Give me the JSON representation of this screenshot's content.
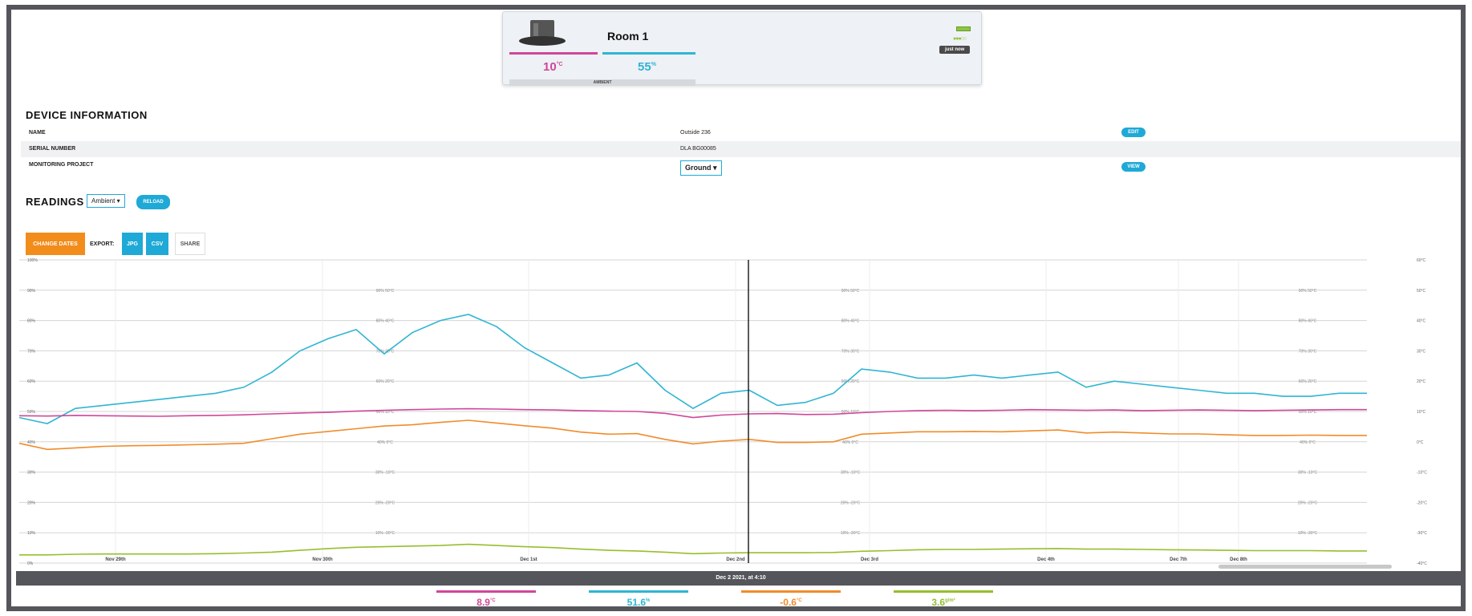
{
  "card": {
    "room_name": "Room 1",
    "temp_value": "10",
    "temp_unit": "°C",
    "humidity_value": "55",
    "humidity_unit": "%",
    "mode": "AMBIENT",
    "signal_dots": "●●●○○",
    "updated": "just now"
  },
  "device_info": {
    "title": "DEVICE INFORMATION",
    "rows": [
      {
        "label": "NAME",
        "value": "Outside 236",
        "action": "EDIT"
      },
      {
        "label": "SERIAL NUMBER",
        "value": "DLA BG00085",
        "action": ""
      },
      {
        "label": "MONITORING PROJECT",
        "value": "Ground",
        "action": "VIEW"
      }
    ]
  },
  "readings": {
    "title": "READINGS",
    "mode_select": "Ambient",
    "reload": "RELOAD",
    "change_dates": "CHANGE DATES",
    "export_label": "EXPORT:",
    "jpg": "JPG",
    "csv": "CSV",
    "share": "SHARE"
  },
  "colors": {
    "temperature": "#d0479a",
    "humidity": "#2fb5d3",
    "dewpoint": "#f08c2a",
    "absolute": "#96bf2e",
    "accent": "#1fa9d6",
    "orange": "#f28c1a"
  },
  "chart_data": {
    "type": "line",
    "x_ticks": [
      "Nov 29th",
      "Nov 30th",
      "Dec 1st",
      "Dec 2nd",
      "Dec 3rd",
      "Dec 4th",
      "Dec 7th",
      "Dec 8th"
    ],
    "left_ticks": [
      "100%",
      "90%",
      "80%",
      "70%",
      "60%",
      "50%",
      "40%",
      "30%",
      "20%",
      "10%",
      "0%"
    ],
    "right_ticks": [
      "60°C",
      "50°C",
      "40°C",
      "30°C",
      "20°C",
      "10°C",
      "0°C",
      "-10°C",
      "-20°C",
      "-30°C",
      "-40°C"
    ],
    "inner_ticks": [
      "90% 50°C",
      "80% 40°C",
      "70% 30°C",
      "60% 20°C",
      "50% 10°C",
      "40% 0°C",
      "30% -10°C",
      "20% -20°C",
      "10% -30°C"
    ],
    "ylim_humidity": [
      0,
      100
    ],
    "ylim_temp": [
      -40,
      60
    ],
    "series": [
      {
        "key": "humidity",
        "values": [
          48,
          46,
          51,
          52,
          53,
          54,
          55,
          56,
          58,
          63,
          70,
          74,
          77,
          69,
          76,
          80,
          82,
          78,
          71,
          66,
          61,
          62,
          66,
          57,
          51,
          56,
          57,
          52,
          53,
          56,
          64,
          63,
          61,
          61,
          62,
          61,
          62,
          63,
          58,
          60,
          59,
          58,
          57,
          56,
          56,
          55,
          55,
          56,
          56
        ]
      },
      {
        "key": "temperature",
        "values": [
          8.6,
          8.5,
          8.7,
          8.6,
          8.5,
          8.4,
          8.6,
          8.7,
          8.9,
          9.2,
          9.5,
          9.7,
          10.1,
          10.4,
          10.6,
          10.8,
          10.9,
          10.8,
          10.6,
          10.5,
          10.3,
          10.1,
          10.0,
          9.4,
          8.0,
          8.8,
          9.2,
          9.3,
          9.0,
          9.1,
          9.6,
          10.0,
          10.3,
          10.4,
          10.3,
          10.4,
          10.6,
          10.5,
          10.4,
          10.5,
          10.3,
          10.4,
          10.5,
          10.4,
          10.3,
          10.4,
          10.5,
          10.6,
          10.6
        ]
      },
      {
        "key": "dewpoint",
        "values": [
          -0.5,
          -2.5,
          -2,
          -1.5,
          -1.3,
          -1.2,
          -1,
          -0.8,
          -0.5,
          1,
          2.5,
          3.4,
          4.3,
          5.2,
          5.6,
          6.4,
          7.1,
          6.2,
          5.3,
          4.5,
          3.2,
          2.5,
          2.7,
          0.8,
          -0.7,
          0.2,
          0.8,
          -0.2,
          -0.2,
          0,
          2.5,
          2.9,
          3.3,
          3.3,
          3.4,
          3.3,
          3.6,
          3.9,
          2.9,
          3.2,
          2.9,
          2.6,
          2.6,
          2.3,
          2.1,
          2.1,
          2.2,
          2.1,
          2.1
        ]
      },
      {
        "key": "absolute",
        "values": [
          2.7,
          2.7,
          2.9,
          3,
          3,
          3,
          3,
          3.1,
          3.3,
          3.6,
          4.2,
          4.8,
          5.2,
          5.4,
          5.6,
          5.8,
          6.2,
          5.8,
          5.4,
          5.1,
          4.6,
          4.2,
          4.0,
          3.6,
          3.1,
          3.3,
          3.4,
          3.4,
          3.4,
          3.5,
          3.9,
          4.1,
          4.4,
          4.5,
          4.5,
          4.6,
          4.7,
          4.8,
          4.6,
          4.6,
          4.5,
          4.4,
          4.3,
          4.2,
          4.1,
          4.1,
          4.1,
          4.0,
          4.0
        ]
      }
    ]
  },
  "footer": {
    "timestamp": "Dec 2 2021, at 4:10",
    "temp_value": "8.9",
    "temp_unit": "°C",
    "humidity_value": "51.6",
    "humidity_unit": "%",
    "dewpoint_value": "-0.6",
    "dewpoint_unit": "°C",
    "absolute_value": "3.6",
    "absolute_unit": "g/m³"
  }
}
